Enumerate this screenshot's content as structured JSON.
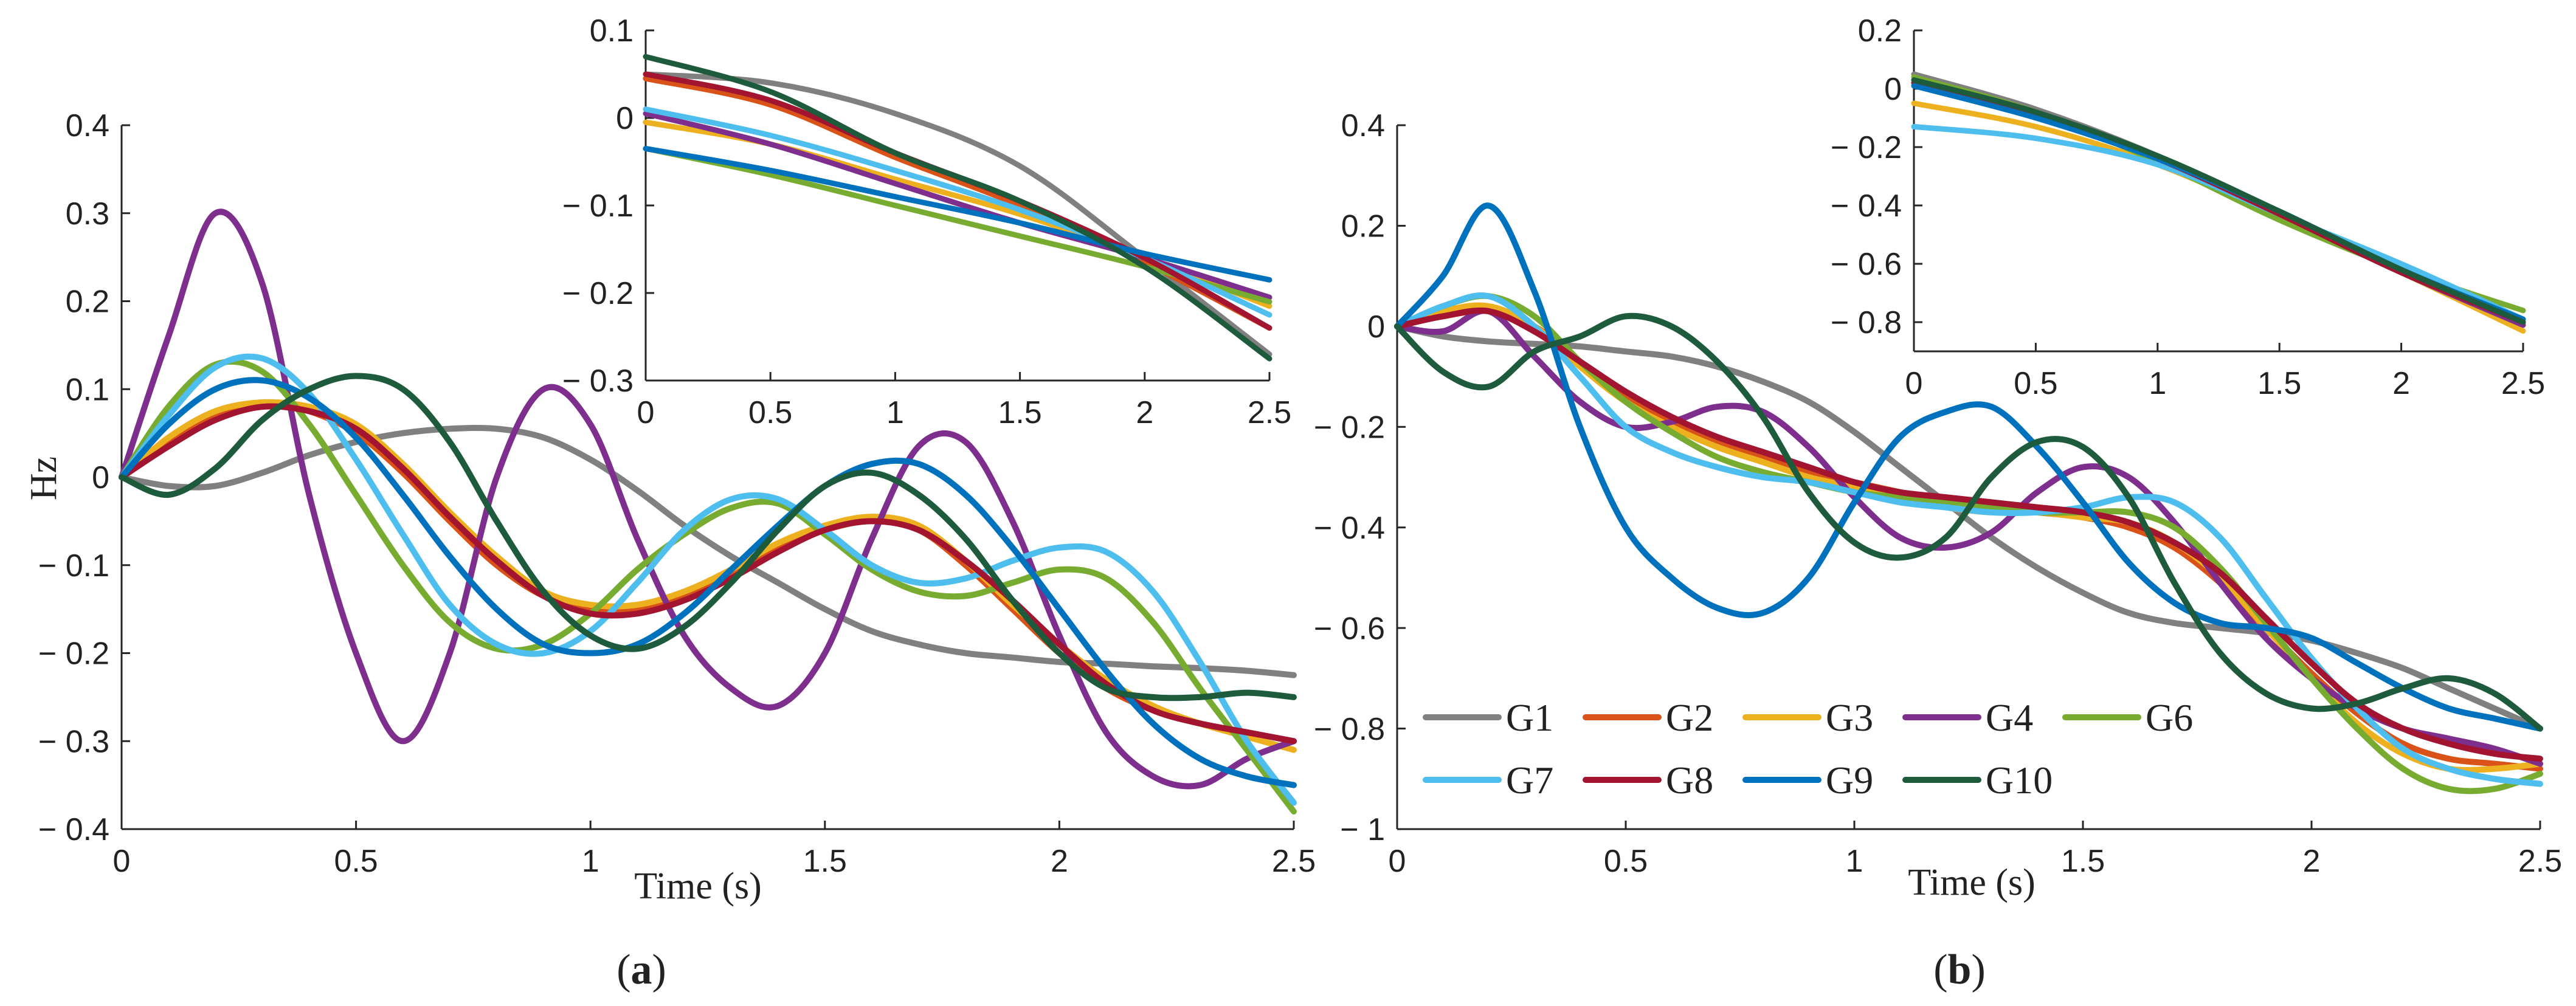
{
  "colors": {
    "G1": "#808080",
    "G2": "#D95319",
    "G3": "#EDB120",
    "G4": "#7E2F8E",
    "G6": "#77AC30",
    "G7": "#4DBEEE",
    "G8": "#A2142F",
    "G9": "#0072BD",
    "G10": "#1E5B3C"
  },
  "chart_data": [
    {
      "id": "a",
      "type": "line",
      "caption": "(a)",
      "caption_letter": "a",
      "xlabel": "Time (s)",
      "ylabel": "Hz",
      "xlim": [
        0,
        2.5
      ],
      "ylim": [
        -0.4,
        0.4
      ],
      "xticks": [
        0,
        0.5,
        1,
        1.5,
        2,
        2.5
      ],
      "xtick_labels": [
        "0",
        "0.5",
        "1",
        "1.5",
        "2",
        "2.5"
      ],
      "yticks": [
        -0.4,
        -0.3,
        -0.2,
        -0.1,
        0,
        0.1,
        0.2,
        0.3,
        0.4
      ],
      "ytick_labels": [
        "− 0.4",
        "− 0.3",
        "− 0.2",
        "− 0.1",
        "0",
        "0.1",
        "0.2",
        "0.3",
        "0.4"
      ],
      "x": [
        0,
        0.1,
        0.2,
        0.3,
        0.4,
        0.5,
        0.6,
        0.7,
        0.8,
        0.9,
        1.0,
        1.1,
        1.2,
        1.3,
        1.4,
        1.5,
        1.6,
        1.7,
        1.8,
        1.9,
        2.0,
        2.1,
        2.2,
        2.3,
        2.4,
        2.5
      ],
      "series": [
        {
          "name": "G1",
          "values": [
            0,
            -0.01,
            -0.01,
            0.005,
            0.025,
            0.04,
            0.05,
            0.055,
            0.055,
            0.045,
            0.02,
            -0.015,
            -0.055,
            -0.09,
            -0.12,
            -0.15,
            -0.175,
            -0.19,
            -0.2,
            -0.205,
            -0.21,
            -0.212,
            -0.215,
            -0.217,
            -0.22,
            -0.225
          ]
        },
        {
          "name": "G2",
          "values": [
            0,
            0.04,
            0.07,
            0.085,
            0.075,
            0.05,
            0.005,
            -0.05,
            -0.1,
            -0.135,
            -0.15,
            -0.15,
            -0.135,
            -0.11,
            -0.08,
            -0.06,
            -0.05,
            -0.06,
            -0.1,
            -0.15,
            -0.2,
            -0.24,
            -0.265,
            -0.28,
            -0.29,
            -0.3
          ]
        },
        {
          "name": "G3",
          "values": [
            0,
            0.045,
            0.075,
            0.085,
            0.08,
            0.06,
            0.015,
            -0.04,
            -0.09,
            -0.13,
            -0.145,
            -0.145,
            -0.13,
            -0.105,
            -0.075,
            -0.055,
            -0.045,
            -0.055,
            -0.095,
            -0.145,
            -0.19,
            -0.23,
            -0.26,
            -0.28,
            -0.295,
            -0.31
          ]
        },
        {
          "name": "G4",
          "values": [
            0,
            0.16,
            0.3,
            0.22,
            -0.02,
            -0.2,
            -0.3,
            -0.2,
            0.0,
            0.1,
            0.06,
            -0.07,
            -0.18,
            -0.24,
            -0.26,
            -0.2,
            -0.07,
            0.035,
            0.04,
            -0.05,
            -0.18,
            -0.29,
            -0.34,
            -0.35,
            -0.32,
            -0.3
          ]
        },
        {
          "name": "G6",
          "values": [
            0,
            0.08,
            0.128,
            0.12,
            0.06,
            -0.02,
            -0.1,
            -0.165,
            -0.195,
            -0.19,
            -0.155,
            -0.105,
            -0.065,
            -0.035,
            -0.03,
            -0.065,
            -0.105,
            -0.13,
            -0.135,
            -0.12,
            -0.105,
            -0.115,
            -0.165,
            -0.24,
            -0.31,
            -0.38
          ]
        },
        {
          "name": "G7",
          "values": [
            0,
            0.07,
            0.125,
            0.135,
            0.095,
            0.02,
            -0.065,
            -0.145,
            -0.19,
            -0.2,
            -0.175,
            -0.12,
            -0.06,
            -0.025,
            -0.025,
            -0.06,
            -0.1,
            -0.12,
            -0.115,
            -0.095,
            -0.08,
            -0.085,
            -0.13,
            -0.21,
            -0.3,
            -0.37
          ]
        },
        {
          "name": "G8",
          "values": [
            0,
            0.035,
            0.065,
            0.08,
            0.075,
            0.055,
            0.01,
            -0.045,
            -0.095,
            -0.135,
            -0.155,
            -0.155,
            -0.14,
            -0.115,
            -0.085,
            -0.06,
            -0.05,
            -0.06,
            -0.095,
            -0.14,
            -0.19,
            -0.235,
            -0.265,
            -0.28,
            -0.29,
            -0.3
          ]
        },
        {
          "name": "G9",
          "values": [
            0,
            0.06,
            0.1,
            0.11,
            0.09,
            0.045,
            -0.02,
            -0.09,
            -0.15,
            -0.19,
            -0.2,
            -0.19,
            -0.155,
            -0.105,
            -0.055,
            -0.01,
            0.015,
            0.015,
            -0.02,
            -0.08,
            -0.15,
            -0.22,
            -0.28,
            -0.32,
            -0.34,
            -0.35
          ]
        },
        {
          "name": "G10",
          "values": [
            0,
            -0.02,
            0.01,
            0.065,
            0.1,
            0.115,
            0.1,
            0.04,
            -0.05,
            -0.13,
            -0.18,
            -0.195,
            -0.17,
            -0.12,
            -0.06,
            -0.01,
            0.005,
            -0.02,
            -0.07,
            -0.14,
            -0.2,
            -0.24,
            -0.25,
            -0.25,
            -0.245,
            -0.25
          ]
        }
      ],
      "inset": {
        "xlim": [
          0,
          2.5
        ],
        "ylim": [
          -0.3,
          0.1
        ],
        "xticks": [
          0,
          0.5,
          1,
          1.5,
          2,
          2.5
        ],
        "xtick_labels": [
          "0",
          "0.5",
          "1",
          "1.5",
          "2",
          "2.5"
        ],
        "yticks": [
          -0.3,
          -0.2,
          -0.1,
          0,
          0.1
        ],
        "ytick_labels": [
          "− 0.3",
          "− 0.2",
          "− 0.1",
          "0",
          "0.1"
        ],
        "x": [
          0,
          0.5,
          1.0,
          1.5,
          2.0,
          2.5
        ],
        "series": [
          {
            "name": "G1",
            "values": [
              0.05,
              0.04,
              0.005,
              -0.055,
              -0.16,
              -0.27
            ]
          },
          {
            "name": "G2",
            "values": [
              0.045,
              0.015,
              -0.045,
              -0.1,
              -0.165,
              -0.24
            ]
          },
          {
            "name": "G3",
            "values": [
              -0.005,
              -0.03,
              -0.07,
              -0.11,
              -0.16,
              -0.215
            ]
          },
          {
            "name": "G4",
            "values": [
              0.005,
              -0.03,
              -0.075,
              -0.12,
              -0.16,
              -0.205
            ]
          },
          {
            "name": "G6",
            "values": [
              -0.035,
              -0.065,
              -0.1,
              -0.135,
              -0.17,
              -0.21
            ]
          },
          {
            "name": "G7",
            "values": [
              0.01,
              -0.02,
              -0.06,
              -0.105,
              -0.16,
              -0.225
            ]
          },
          {
            "name": "G8",
            "values": [
              0.05,
              0.02,
              -0.04,
              -0.095,
              -0.16,
              -0.24
            ]
          },
          {
            "name": "G9",
            "values": [
              -0.035,
              -0.06,
              -0.09,
              -0.12,
              -0.155,
              -0.185
            ]
          },
          {
            "name": "G10",
            "values": [
              0.07,
              0.03,
              -0.04,
              -0.095,
              -0.17,
              -0.275
            ]
          }
        ]
      }
    },
    {
      "id": "b",
      "type": "line",
      "caption": "(b)",
      "caption_letter": "b",
      "xlabel": "Time (s)",
      "ylabel": "",
      "xlim": [
        0,
        2.5
      ],
      "ylim": [
        -1,
        0.4
      ],
      "xticks": [
        0,
        0.5,
        1,
        1.5,
        2,
        2.5
      ],
      "xtick_labels": [
        "0",
        "0.5",
        "1",
        "1.5",
        "2",
        "2.5"
      ],
      "yticks": [
        -1,
        -0.8,
        -0.6,
        -0.4,
        -0.2,
        0,
        0.2,
        0.4
      ],
      "ytick_labels": [
        "− 1",
        "− 0.8",
        "− 0.6",
        "− 0.4",
        "− 0.2",
        "0",
        "0.2",
        "0.4"
      ],
      "x": [
        0,
        0.1,
        0.2,
        0.3,
        0.4,
        0.5,
        0.6,
        0.7,
        0.8,
        0.9,
        1.0,
        1.1,
        1.2,
        1.3,
        1.4,
        1.5,
        1.6,
        1.7,
        1.8,
        1.9,
        2.0,
        2.1,
        2.2,
        2.3,
        2.4,
        2.5
      ],
      "series": [
        {
          "name": "G1",
          "values": [
            0,
            -0.02,
            -0.03,
            -0.035,
            -0.04,
            -0.05,
            -0.06,
            -0.08,
            -0.11,
            -0.15,
            -0.21,
            -0.28,
            -0.35,
            -0.42,
            -0.48,
            -0.53,
            -0.57,
            -0.59,
            -0.6,
            -0.61,
            -0.625,
            -0.65,
            -0.68,
            -0.72,
            -0.76,
            -0.8
          ]
        },
        {
          "name": "G2",
          "values": [
            0,
            0.02,
            0.03,
            0.0,
            -0.07,
            -0.14,
            -0.19,
            -0.23,
            -0.26,
            -0.29,
            -0.31,
            -0.33,
            -0.35,
            -0.36,
            -0.37,
            -0.38,
            -0.4,
            -0.44,
            -0.51,
            -0.6,
            -0.69,
            -0.77,
            -0.83,
            -0.86,
            -0.87,
            -0.88
          ]
        },
        {
          "name": "G3",
          "values": [
            0,
            0.03,
            0.04,
            0.0,
            -0.08,
            -0.15,
            -0.2,
            -0.24,
            -0.27,
            -0.3,
            -0.32,
            -0.34,
            -0.36,
            -0.37,
            -0.37,
            -0.38,
            -0.39,
            -0.43,
            -0.5,
            -0.6,
            -0.7,
            -0.79,
            -0.85,
            -0.88,
            -0.88,
            -0.87
          ]
        },
        {
          "name": "G4",
          "values": [
            0,
            -0.01,
            0.03,
            -0.06,
            -0.15,
            -0.2,
            -0.19,
            -0.16,
            -0.17,
            -0.24,
            -0.34,
            -0.42,
            -0.44,
            -0.41,
            -0.33,
            -0.28,
            -0.3,
            -0.39,
            -0.51,
            -0.62,
            -0.7,
            -0.76,
            -0.8,
            -0.82,
            -0.84,
            -0.87
          ]
        },
        {
          "name": "G6",
          "values": [
            0,
            0.04,
            0.06,
            0.02,
            -0.07,
            -0.15,
            -0.21,
            -0.26,
            -0.29,
            -0.31,
            -0.33,
            -0.34,
            -0.35,
            -0.36,
            -0.37,
            -0.37,
            -0.37,
            -0.4,
            -0.48,
            -0.59,
            -0.7,
            -0.8,
            -0.88,
            -0.92,
            -0.92,
            -0.89
          ]
        },
        {
          "name": "G7",
          "values": [
            0,
            0.04,
            0.06,
            0.0,
            -0.1,
            -0.2,
            -0.25,
            -0.28,
            -0.3,
            -0.31,
            -0.33,
            -0.35,
            -0.36,
            -0.37,
            -0.37,
            -0.36,
            -0.34,
            -0.35,
            -0.42,
            -0.54,
            -0.66,
            -0.76,
            -0.84,
            -0.88,
            -0.9,
            -0.91
          ]
        },
        {
          "name": "G8",
          "values": [
            0,
            0.02,
            0.03,
            -0.01,
            -0.07,
            -0.13,
            -0.18,
            -0.22,
            -0.25,
            -0.28,
            -0.31,
            -0.33,
            -0.34,
            -0.35,
            -0.36,
            -0.37,
            -0.39,
            -0.43,
            -0.49,
            -0.58,
            -0.67,
            -0.75,
            -0.8,
            -0.83,
            -0.85,
            -0.86
          ]
        },
        {
          "name": "G9",
          "values": [
            0,
            0.1,
            0.24,
            0.07,
            -0.2,
            -0.4,
            -0.5,
            -0.56,
            -0.57,
            -0.5,
            -0.35,
            -0.22,
            -0.17,
            -0.16,
            -0.24,
            -0.35,
            -0.47,
            -0.55,
            -0.59,
            -0.6,
            -0.62,
            -0.67,
            -0.72,
            -0.76,
            -0.78,
            -0.8
          ]
        },
        {
          "name": "G10",
          "values": [
            0,
            -0.09,
            -0.12,
            -0.05,
            -0.02,
            0.02,
            0.0,
            -0.07,
            -0.18,
            -0.33,
            -0.43,
            -0.46,
            -0.42,
            -0.3,
            -0.23,
            -0.24,
            -0.34,
            -0.51,
            -0.65,
            -0.73,
            -0.76,
            -0.75,
            -0.72,
            -0.7,
            -0.73,
            -0.8
          ]
        }
      ],
      "inset": {
        "xlim": [
          0,
          2.5
        ],
        "ylim": [
          -0.9,
          0.2
        ],
        "xticks": [
          0,
          0.5,
          1,
          1.5,
          2,
          2.5
        ],
        "xtick_labels": [
          "0",
          "0.5",
          "1",
          "1.5",
          "2",
          "2.5"
        ],
        "yticks": [
          -0.8,
          -0.6,
          -0.4,
          -0.2,
          0,
          0.2
        ],
        "ytick_labels": [
          "− 0.8",
          "− 0.6",
          "− 0.4",
          "− 0.2",
          "0",
          "0.2"
        ],
        "x": [
          0,
          0.5,
          1.0,
          1.5,
          2.0,
          2.5
        ],
        "series": [
          {
            "name": "G1",
            "values": [
              0.05,
              -0.07,
              -0.23,
              -0.43,
              -0.62,
              -0.79
            ]
          },
          {
            "name": "G2",
            "values": [
              0.03,
              -0.08,
              -0.24,
              -0.43,
              -0.62,
              -0.8
            ]
          },
          {
            "name": "G3",
            "values": [
              -0.05,
              -0.13,
              -0.26,
              -0.44,
              -0.63,
              -0.83
            ]
          },
          {
            "name": "G4",
            "values": [
              0.02,
              -0.09,
              -0.24,
              -0.43,
              -0.63,
              -0.81
            ]
          },
          {
            "name": "G6",
            "values": [
              0.04,
              -0.08,
              -0.25,
              -0.45,
              -0.62,
              -0.76
            ]
          },
          {
            "name": "G7",
            "values": [
              -0.13,
              -0.17,
              -0.26,
              -0.43,
              -0.6,
              -0.79
            ]
          },
          {
            "name": "G8",
            "values": [
              0.02,
              -0.09,
              -0.24,
              -0.43,
              -0.63,
              -0.8
            ]
          },
          {
            "name": "G9",
            "values": [
              0.01,
              -0.1,
              -0.24,
              -0.42,
              -0.62,
              -0.79
            ]
          },
          {
            "name": "G10",
            "values": [
              0.03,
              -0.08,
              -0.23,
              -0.42,
              -0.62,
              -0.8
            ]
          }
        ]
      }
    }
  ],
  "legend": {
    "rows": [
      [
        "G1",
        "G2",
        "G3",
        "G4",
        "G6"
      ],
      [
        "G7",
        "G8",
        "G9",
        "G10"
      ]
    ]
  }
}
